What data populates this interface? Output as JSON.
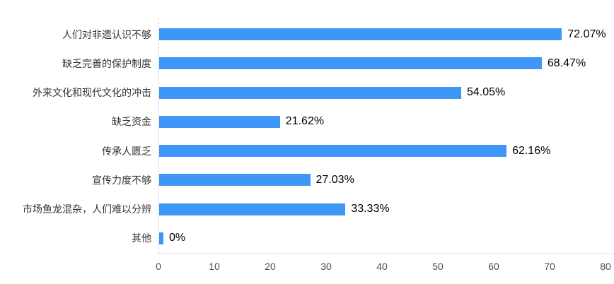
{
  "chart_data": {
    "type": "bar",
    "orientation": "horizontal",
    "title": "",
    "xlabel": "",
    "ylabel": "",
    "categories": [
      "人们对非遗认识不够",
      "缺乏完善的保护制度",
      "外来文化和现代文化的冲击",
      "缺乏资金",
      "传承人匮乏",
      "宣传力度不够",
      "市场鱼龙混杂，人们难以分辨",
      "其他"
    ],
    "values": [
      72.07,
      68.47,
      54.05,
      21.62,
      62.16,
      27.03,
      33.33,
      0
    ],
    "value_labels": [
      "72.07%",
      "68.47%",
      "54.05%",
      "21.62%",
      "62.16%",
      "27.03%",
      "33.33%",
      "0%"
    ],
    "xticks": [
      0,
      10,
      20,
      30,
      40,
      50,
      60,
      70,
      80
    ],
    "xlim": [
      0,
      80
    ],
    "grid": false,
    "legend": null,
    "bar_color": "#3E96F6",
    "label_color": "#333333",
    "value_label_color": "#000000",
    "tick_label_color": "#4b4b55"
  }
}
